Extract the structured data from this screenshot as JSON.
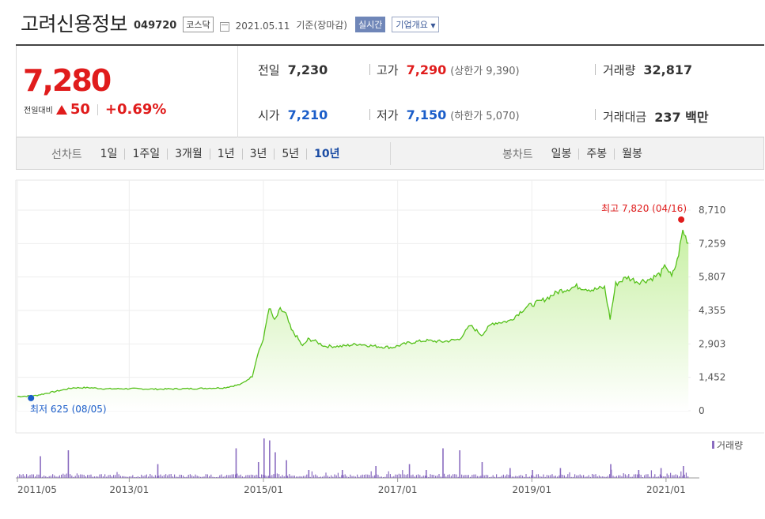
{
  "header": {
    "company": "고려신용정보",
    "code": "049720",
    "market": "코스닥",
    "date": "2021.05.11",
    "basis": "기준(장마감)",
    "realtime_label": "실시간",
    "overview_label": "기업개요"
  },
  "price": {
    "current": "7,280",
    "change_label": "전일대비",
    "change": "50",
    "change_pct": "+0.69%"
  },
  "stats": {
    "prev_label": "전일",
    "prev": "7,230",
    "high_label": "고가",
    "high": "7,290",
    "upper_limit": "(상한가 9,390)",
    "volume_label": "거래량",
    "volume": "32,817",
    "open_label": "시가",
    "open": "7,210",
    "low_label": "저가",
    "low": "7,150",
    "lower_limit": "(하한가 5,070)",
    "amount_label": "거래대금",
    "amount": "237 백만"
  },
  "line_tabs": {
    "label": "선차트",
    "items": [
      "1일",
      "1주일",
      "3개월",
      "1년",
      "3년",
      "5년",
      "10년"
    ],
    "active": "10년"
  },
  "candle_tabs": {
    "label": "봉차트",
    "items": [
      "일봉",
      "주봉",
      "월봉"
    ]
  },
  "colors": {
    "up": "#e01c1c",
    "down": "#1a5dc9",
    "line": "#55c11a",
    "area_top": "#c8f0a4",
    "volume": "#8a6cc0"
  },
  "chart_data": {
    "type": "area",
    "period": "10년",
    "x": [
      "2011/05",
      "2011/08",
      "2011/11",
      "2012/03",
      "2012/06",
      "2012/09",
      "2013/01",
      "2013/06",
      "2013/12",
      "2014/06",
      "2014/09",
      "2014/11",
      "2014/12",
      "2015/01",
      "2015/02",
      "2015/03",
      "2015/04",
      "2015/05",
      "2015/06",
      "2015/07",
      "2015/08",
      "2015/09",
      "2015/10",
      "2015/12",
      "2016/03",
      "2016/06",
      "2016/09",
      "2016/12",
      "2017/03",
      "2017/06",
      "2017/09",
      "2017/12",
      "2018/02",
      "2018/04",
      "2018/06",
      "2018/09",
      "2018/12",
      "2019/03",
      "2019/06",
      "2019/09",
      "2019/12",
      "2020/02",
      "2020/03",
      "2020/04",
      "2020/06",
      "2020/08",
      "2020/10",
      "2020/12",
      "2021/01",
      "2021/02",
      "2021/03",
      "2021/04",
      "2021/05"
    ],
    "y": [
      620,
      650,
      800,
      1000,
      1000,
      950,
      960,
      940,
      960,
      1000,
      1150,
      1500,
      2500,
      3100,
      4500,
      3900,
      4400,
      4200,
      3500,
      3200,
      2800,
      3100,
      3050,
      2800,
      2800,
      2900,
      2800,
      2750,
      2950,
      3050,
      3000,
      3100,
      3700,
      3300,
      3800,
      3900,
      4500,
      4800,
      5200,
      5400,
      5250,
      5350,
      4000,
      5500,
      5800,
      5600,
      5700,
      5950,
      6300,
      5800,
      6500,
      7820,
      7280
    ],
    "y_ticks": [
      "8,710",
      "7,259",
      "5,807",
      "4,355",
      "2,903",
      "1,452",
      "0"
    ],
    "ylim": [
      0,
      8710
    ],
    "x_ticks": [
      "2011/05",
      "2013/01",
      "2015/01",
      "2017/01",
      "2019/01",
      "2021/01"
    ],
    "max_label": "최고 7,820 (04/16)",
    "min_label": "최저 625 (08/05)",
    "volume_label": "거래량",
    "volume_spikes": [
      {
        "x": "2011/09",
        "v": 0.55
      },
      {
        "x": "2012/02",
        "v": 0.7
      },
      {
        "x": "2013/06",
        "v": 0.35
      },
      {
        "x": "2014/08",
        "v": 0.75
      },
      {
        "x": "2014/12",
        "v": 0.4
      },
      {
        "x": "2015/01",
        "v": 1.0
      },
      {
        "x": "2015/02",
        "v": 0.95
      },
      {
        "x": "2015/03",
        "v": 0.65
      },
      {
        "x": "2015/05",
        "v": 0.45
      },
      {
        "x": "2015/09",
        "v": 0.2
      },
      {
        "x": "2016/03",
        "v": 0.2
      },
      {
        "x": "2016/09",
        "v": 0.3
      },
      {
        "x": "2017/03",
        "v": 0.35
      },
      {
        "x": "2017/06",
        "v": 0.2
      },
      {
        "x": "2017/09",
        "v": 0.75
      },
      {
        "x": "2017/12",
        "v": 0.7
      },
      {
        "x": "2018/04",
        "v": 0.4
      },
      {
        "x": "2018/09",
        "v": 0.25
      },
      {
        "x": "2019/01",
        "v": 0.2
      },
      {
        "x": "2019/06",
        "v": 0.25
      },
      {
        "x": "2020/03",
        "v": 0.35
      },
      {
        "x": "2020/08",
        "v": 0.2
      },
      {
        "x": "2020/12",
        "v": 0.25
      },
      {
        "x": "2021/04",
        "v": 0.3
      }
    ]
  }
}
